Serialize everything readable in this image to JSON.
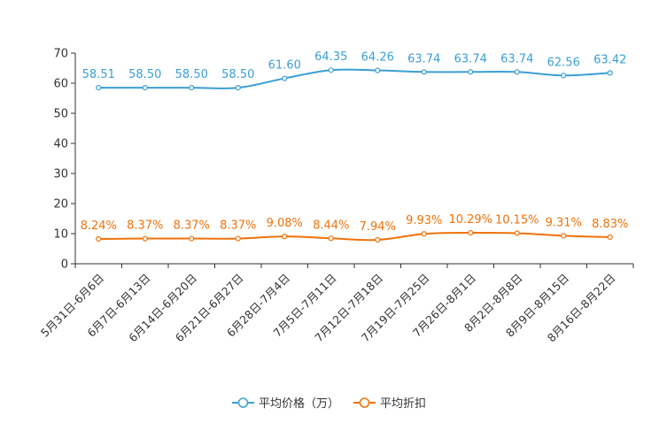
{
  "chart_data": {
    "type": "line",
    "title": "",
    "xlabel": "",
    "ylabel": "",
    "ylim": [
      0,
      70
    ],
    "yticks": [
      0,
      10,
      20,
      30,
      40,
      50,
      60,
      70
    ],
    "categories": [
      "5月31日-6月6日",
      "6月7日-6月13日",
      "6月14日-6月20日",
      "6月21日-6月27日",
      "6月28日-7月4日",
      "7月5日-7月11日",
      "7月12日-7月18日",
      "7月19日-7月25日",
      "7月26日-8月1日",
      "8月2日-8月8日",
      "8月9日-8月15日",
      "8月16日-8月22日"
    ],
    "series": [
      {
        "name": "平均价格（万）",
        "color": "#3a9fd5",
        "values": [
          58.51,
          58.5,
          58.5,
          58.5,
          61.6,
          64.35,
          64.26,
          63.74,
          63.74,
          63.74,
          62.56,
          63.42
        ],
        "labels": [
          "58.51",
          "58.50",
          "58.50",
          "58.50",
          "61.60",
          "64.35",
          "64.26",
          "63.74",
          "63.74",
          "63.74",
          "62.56",
          "63.42"
        ]
      },
      {
        "name": "平均折扣",
        "color": "#f0720a",
        "values": [
          8.24,
          8.37,
          8.37,
          8.37,
          9.08,
          8.44,
          7.94,
          9.93,
          10.29,
          10.15,
          9.31,
          8.83
        ],
        "labels": [
          "8.24%",
          "8.37%",
          "8.37%",
          "8.37%",
          "9.08%",
          "8.44%",
          "7.94%",
          "9.93%",
          "10.29%",
          "10.15%",
          "9.31%",
          "8.83%"
        ]
      }
    ],
    "legend_position": "bottom-center"
  }
}
